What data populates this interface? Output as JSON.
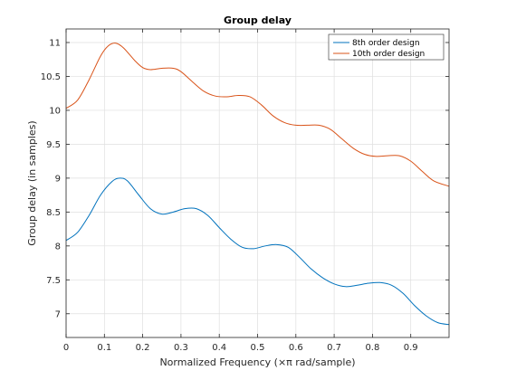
{
  "chart_data": {
    "type": "line",
    "title": "Group delay",
    "xlabel": "Normalized Frequency (×π rad/sample)",
    "ylabel": "Group delay (in samples)",
    "xlim": [
      0,
      1
    ],
    "ylim": [
      6.65,
      11.2
    ],
    "xticks": [
      0,
      0.1,
      0.2,
      0.3,
      0.4,
      0.5,
      0.6,
      0.7,
      0.8,
      0.9
    ],
    "xtick_labels": [
      "0",
      "0.1",
      "0.2",
      "0.3",
      "0.4",
      "0.5",
      "0.6",
      "0.7",
      "0.8",
      "0.9"
    ],
    "yticks": [
      7,
      7.5,
      8,
      8.5,
      9,
      9.5,
      10,
      10.5,
      11
    ],
    "ytick_labels": [
      "7",
      "7.5",
      "8",
      "8.5",
      "9",
      "9.5",
      "10",
      "10.5",
      "11"
    ],
    "grid": true,
    "legend_position": "top-right",
    "series": [
      {
        "name": "8th order design",
        "color": "#0072bd",
        "x": [
          0,
          0.03,
          0.06,
          0.09,
          0.12,
          0.14,
          0.16,
          0.19,
          0.22,
          0.25,
          0.28,
          0.31,
          0.34,
          0.37,
          0.4,
          0.43,
          0.46,
          0.49,
          0.52,
          0.55,
          0.58,
          0.61,
          0.64,
          0.67,
          0.7,
          0.73,
          0.76,
          0.79,
          0.82,
          0.85,
          0.88,
          0.91,
          0.94,
          0.97,
          1.0
        ],
        "values": [
          8.08,
          8.2,
          8.45,
          8.75,
          8.95,
          9.0,
          8.96,
          8.75,
          8.55,
          8.47,
          8.5,
          8.55,
          8.55,
          8.45,
          8.27,
          8.1,
          7.98,
          7.96,
          8.0,
          8.02,
          7.98,
          7.83,
          7.66,
          7.53,
          7.44,
          7.4,
          7.42,
          7.45,
          7.46,
          7.42,
          7.3,
          7.12,
          6.97,
          6.87,
          6.84
        ]
      },
      {
        "name": "10th order design",
        "color": "#d95319",
        "x": [
          0,
          0.03,
          0.06,
          0.09,
          0.11,
          0.13,
          0.15,
          0.18,
          0.2,
          0.22,
          0.25,
          0.28,
          0.3,
          0.33,
          0.36,
          0.39,
          0.42,
          0.45,
          0.48,
          0.51,
          0.54,
          0.57,
          0.6,
          0.63,
          0.66,
          0.69,
          0.72,
          0.75,
          0.78,
          0.81,
          0.84,
          0.87,
          0.9,
          0.93,
          0.96,
          1.0
        ],
        "values": [
          10.03,
          10.15,
          10.45,
          10.8,
          10.95,
          10.99,
          10.92,
          10.73,
          10.63,
          10.6,
          10.62,
          10.62,
          10.57,
          10.42,
          10.28,
          10.21,
          10.2,
          10.22,
          10.2,
          10.08,
          9.92,
          9.82,
          9.78,
          9.78,
          9.78,
          9.72,
          9.58,
          9.44,
          9.35,
          9.32,
          9.33,
          9.33,
          9.25,
          9.1,
          8.96,
          8.88
        ]
      }
    ]
  }
}
